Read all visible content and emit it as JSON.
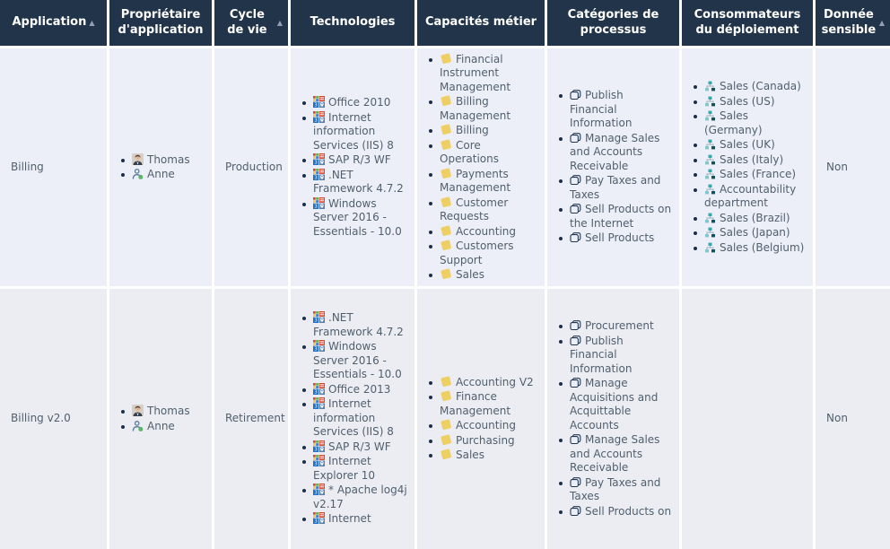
{
  "table": {
    "sort_indicator": "▲",
    "columns": [
      {
        "id": "application",
        "label": "Application",
        "sortable": true,
        "type": "text",
        "field": "application"
      },
      {
        "id": "owner",
        "label": "Propriétaire d'application",
        "sortable": false,
        "type": "owners",
        "field": "owners"
      },
      {
        "id": "lifecycle",
        "label": "Cycle de vie",
        "sortable": true,
        "type": "text",
        "field": "lifecycle"
      },
      {
        "id": "technologies",
        "label": "Technologies",
        "sortable": false,
        "type": "list",
        "icon": "technology-icon",
        "field": "technologies"
      },
      {
        "id": "capabilities",
        "label": "Capacités métier",
        "sortable": false,
        "type": "list",
        "icon": "business-capability-icon",
        "field": "capabilities"
      },
      {
        "id": "process-categories",
        "label": "Catégories de processus",
        "sortable": false,
        "type": "list",
        "icon": "process-category-icon",
        "field": "process_categories"
      },
      {
        "id": "deployment-consumers",
        "label": "Consommateurs du déploiement",
        "sortable": false,
        "type": "list",
        "icon": "org-unit-icon",
        "field": "deployment_consumers"
      },
      {
        "id": "sensitive",
        "label": "Donnée sensible",
        "sortable": true,
        "type": "text",
        "field": "sensitive"
      }
    ],
    "rows": [
      {
        "application": "Billing",
        "owners": [
          {
            "name": "Thomas",
            "icon": "male-avatar-icon"
          },
          {
            "name": "Anne",
            "icon": "person-online-icon"
          }
        ],
        "lifecycle": "Production",
        "technologies": [
          "Office 2010",
          "Internet information Services (IIS) 8",
          "SAP R/3 WF",
          ".NET Framework 4.7.2",
          "Windows Server 2016 - Essentials - 10.0"
        ],
        "capabilities": [
          "Financial Instrument Management",
          "Billing Management",
          "Billing",
          "Core Operations",
          "Payments Management",
          "Customer Requests",
          "Accounting",
          "Customers Support",
          "Sales"
        ],
        "process_categories": [
          "Publish Financial Information",
          "Manage Sales and Accounts Receivable",
          "Pay Taxes and Taxes",
          "Sell Products on the Internet",
          "Sell Products"
        ],
        "deployment_consumers": [
          "Sales (Canada)",
          "Sales (US)",
          "Sales (Germany)",
          "Sales (UK)",
          "Sales (Italy)",
          "Sales (France)",
          "Accountability department",
          "Sales (Brazil)",
          "Sales (Japan)",
          "Sales (Belgium)"
        ],
        "sensitive": "Non"
      },
      {
        "application": "Billing v2.0",
        "owners": [
          {
            "name": "Thomas",
            "icon": "male-avatar-icon"
          },
          {
            "name": "Anne",
            "icon": "person-online-icon"
          }
        ],
        "lifecycle": "Retirement",
        "technologies": [
          ".NET Framework 4.7.2",
          "Windows Server 2016 - Essentials - 10.0",
          "Office 2013",
          "Internet information Services (IIS) 8",
          "SAP R/3 WF",
          "Internet Explorer 10",
          "* Apache log4j v2.17",
          "Internet"
        ],
        "capabilities": [
          "Accounting V2",
          "Finance Management",
          "Accounting",
          "Purchasing",
          "Sales"
        ],
        "process_categories": [
          "Procurement",
          "Publish Financial Information",
          "Manage Acquisitions and Acquittable Accounts",
          "Manage Sales and Accounts Receivable",
          "Pay Taxes and Taxes",
          "Sell Products on"
        ],
        "deployment_consumers": [],
        "sensitive": "Non"
      }
    ]
  },
  "colors": {
    "header_bg": "#213449",
    "header_text": "#ffffff",
    "sort_arrow": "#95a1b2",
    "row1_bg": "#eceff7",
    "row2_bg": "#ebedf3",
    "cell_text": "#515f6d",
    "bullet": "#1c2f49",
    "capability_yellow": "#eecf63",
    "process_outline": "#223650",
    "org_teal": "#35a8ad",
    "org_teal_light": "#7fc8cc",
    "org_navy": "#19505e",
    "online_green": "#59b667"
  }
}
